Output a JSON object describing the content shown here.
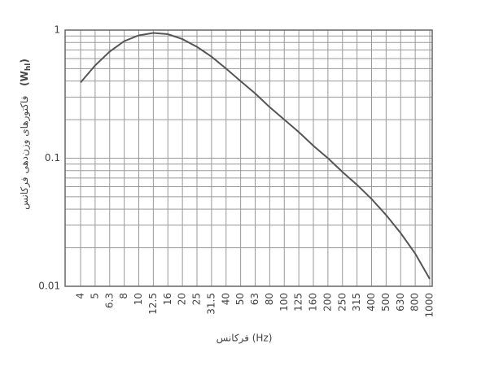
{
  "chart_data": {
    "type": "line",
    "ylabel_parts": [
      "فاکتورهای وزن‌دهی فرکانس",
      "(W",
      "hl",
      ")"
    ],
    "xlabel": "فرکانس (Hz)",
    "categories": [
      "4",
      "5",
      "6.3",
      "8",
      "10",
      "12.5",
      "16",
      "20",
      "25",
      "31.5",
      "40",
      "50",
      "63",
      "80",
      "100",
      "125",
      "160",
      "200",
      "250",
      "315",
      "400",
      "500",
      "630",
      "800",
      "1000"
    ],
    "series": [
      {
        "color": "#555555",
        "values": [
          0.39,
          0.53,
          0.68,
          0.82,
          0.91,
          0.95,
          0.93,
          0.85,
          0.74,
          0.62,
          0.5,
          0.4,
          0.32,
          0.25,
          0.2,
          0.16,
          0.125,
          0.1,
          0.078,
          0.062,
          0.048,
          0.036,
          0.026,
          0.018,
          0.0114
        ]
      }
    ],
    "ylim": [
      0.01,
      1
    ],
    "yticks": [
      0.01,
      0.1,
      1
    ],
    "log_y": true,
    "grid": true,
    "minor_grid": true
  }
}
